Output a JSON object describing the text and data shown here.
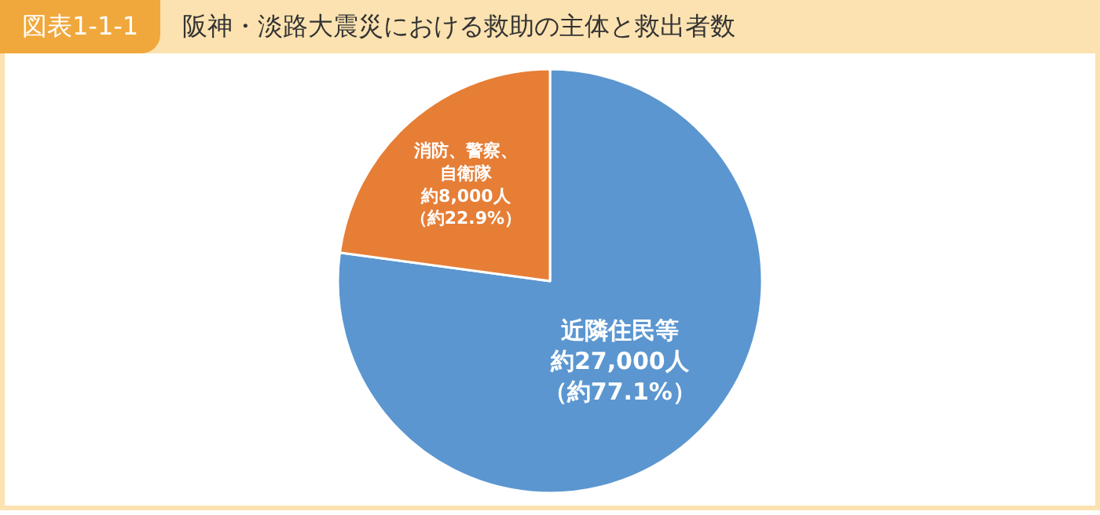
{
  "chart_data": {
    "type": "pie",
    "title": "阪神・淡路大震災における救助の主体と救出者数",
    "annotations": [
      "図表1-1-1"
    ],
    "categories": [
      "近隣住民等",
      "消防、警察、自衛隊"
    ],
    "values": [
      27000,
      8000
    ],
    "colors": [
      "#5b96d0",
      "#e67e36"
    ],
    "value_labels": [
      "約27,000人（約77.1%）",
      "約8,000人（約22.9%）"
    ],
    "legend": false
  }
}
